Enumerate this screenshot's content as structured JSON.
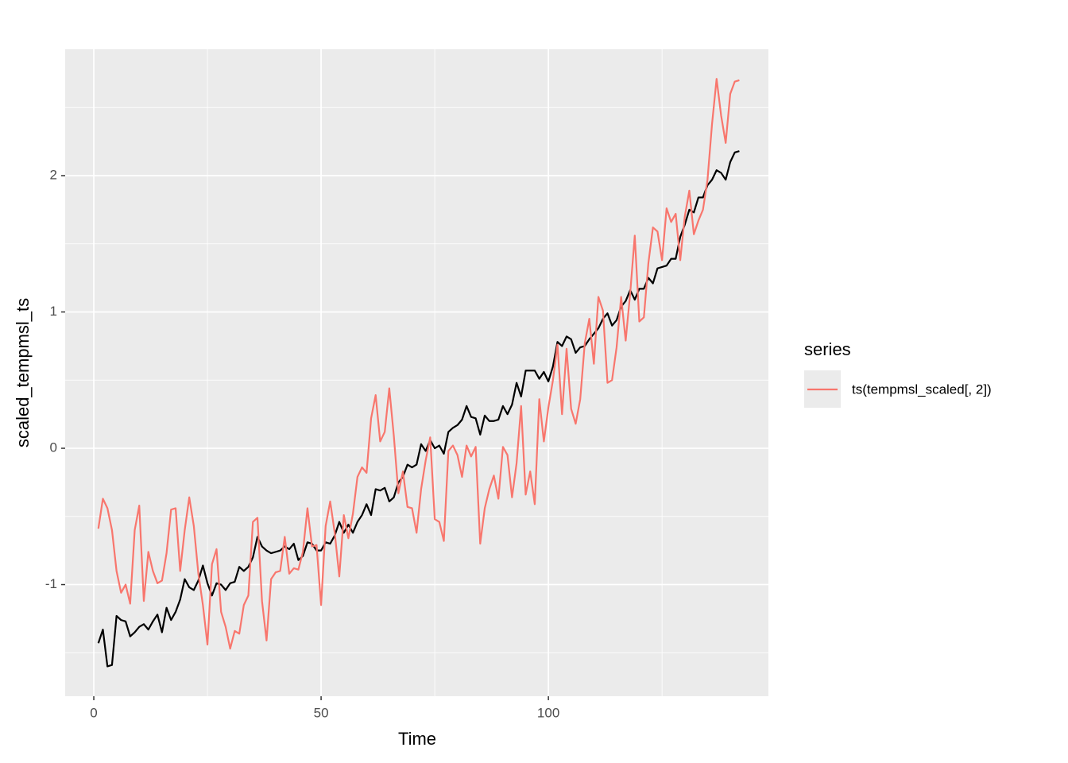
{
  "chart_data": {
    "type": "line",
    "x_label": "Time",
    "y_label": "scaled_tempmsl_ts",
    "legend_title": "series",
    "legend_position": "right",
    "x": [
      1,
      2,
      3,
      4,
      5,
      6,
      7,
      8,
      9,
      10,
      11,
      12,
      13,
      14,
      15,
      16,
      17,
      18,
      19,
      20,
      21,
      22,
      23,
      24,
      25,
      26,
      27,
      28,
      29,
      30,
      31,
      32,
      33,
      34,
      35,
      36,
      37,
      38,
      39,
      40,
      41,
      42,
      43,
      44,
      45,
      46,
      47,
      48,
      49,
      50,
      51,
      52,
      53,
      54,
      55,
      56,
      57,
      58,
      59,
      60,
      61,
      62,
      63,
      64,
      65,
      66,
      67,
      68,
      69,
      70,
      71,
      72,
      73,
      74,
      75,
      76,
      77,
      78,
      79,
      80,
      81,
      82,
      83,
      84,
      85,
      86,
      87,
      88,
      89,
      90,
      91,
      92,
      93,
      94,
      95,
      96,
      97,
      98,
      99,
      100,
      101,
      102,
      103,
      104,
      105,
      106,
      107,
      108,
      109,
      110,
      111,
      112,
      113,
      114,
      115,
      116,
      117,
      118,
      119,
      120,
      121,
      122,
      123,
      124,
      125,
      126,
      127,
      128,
      129,
      130,
      131,
      132,
      133,
      134,
      135,
      136,
      137,
      138,
      139,
      140,
      141,
      142
    ],
    "series": [
      {
        "color": "#000000",
        "values": [
          -1.43,
          -1.33,
          -1.6,
          -1.59,
          -1.23,
          -1.26,
          -1.27,
          -1.38,
          -1.35,
          -1.31,
          -1.29,
          -1.33,
          -1.27,
          -1.22,
          -1.35,
          -1.17,
          -1.26,
          -1.2,
          -1.11,
          -0.96,
          -1.02,
          -1.04,
          -0.97,
          -0.86,
          -0.99,
          -1.08,
          -0.99,
          -1.0,
          -1.04,
          -0.99,
          -0.98,
          -0.87,
          -0.9,
          -0.87,
          -0.8,
          -0.65,
          -0.72,
          -0.75,
          -0.77,
          -0.76,
          -0.75,
          -0.72,
          -0.74,
          -0.7,
          -0.82,
          -0.79,
          -0.69,
          -0.7,
          -0.75,
          -0.75,
          -0.69,
          -0.7,
          -0.64,
          -0.54,
          -0.62,
          -0.56,
          -0.62,
          -0.54,
          -0.49,
          -0.41,
          -0.49,
          -0.3,
          -0.31,
          -0.29,
          -0.39,
          -0.36,
          -0.25,
          -0.21,
          -0.12,
          -0.14,
          -0.12,
          0.03,
          -0.02,
          0.06,
          0.0,
          0.02,
          -0.04,
          0.12,
          0.15,
          0.17,
          0.21,
          0.31,
          0.23,
          0.22,
          0.1,
          0.24,
          0.2,
          0.2,
          0.21,
          0.31,
          0.25,
          0.32,
          0.48,
          0.38,
          0.57,
          0.57,
          0.57,
          0.51,
          0.56,
          0.49,
          0.6,
          0.78,
          0.75,
          0.82,
          0.8,
          0.7,
          0.74,
          0.75,
          0.8,
          0.84,
          0.88,
          0.95,
          0.99,
          0.9,
          0.94,
          1.04,
          1.08,
          1.16,
          1.09,
          1.17,
          1.17,
          1.25,
          1.21,
          1.32,
          1.33,
          1.34,
          1.39,
          1.39,
          1.55,
          1.64,
          1.75,
          1.73,
          1.84,
          1.84,
          1.93,
          1.97,
          2.04,
          2.02,
          1.97,
          2.1,
          2.17,
          2.18
        ]
      },
      {
        "name": "ts(tempmsl_scaled[, 2])",
        "color": "#F8766D",
        "values": [
          -0.59,
          -0.37,
          -0.44,
          -0.6,
          -0.9,
          -1.06,
          -1.0,
          -1.14,
          -0.6,
          -0.42,
          -1.12,
          -0.76,
          -0.9,
          -0.99,
          -0.97,
          -0.77,
          -0.45,
          -0.44,
          -0.9,
          -0.6,
          -0.36,
          -0.57,
          -0.92,
          -1.15,
          -1.44,
          -0.85,
          -0.74,
          -1.2,
          -1.31,
          -1.47,
          -1.34,
          -1.36,
          -1.15,
          -1.08,
          -0.54,
          -0.51,
          -1.12,
          -1.41,
          -0.96,
          -0.91,
          -0.9,
          -0.65,
          -0.92,
          -0.88,
          -0.89,
          -0.76,
          -0.44,
          -0.72,
          -0.71,
          -1.15,
          -0.57,
          -0.39,
          -0.62,
          -0.94,
          -0.49,
          -0.66,
          -0.48,
          -0.21,
          -0.14,
          -0.18,
          0.22,
          0.39,
          0.05,
          0.12,
          0.44,
          0.09,
          -0.33,
          -0.17,
          -0.43,
          -0.44,
          -0.62,
          -0.3,
          -0.09,
          0.08,
          -0.52,
          -0.54,
          -0.68,
          -0.02,
          0.02,
          -0.05,
          -0.21,
          0.02,
          -0.06,
          0.01,
          -0.7,
          -0.44,
          -0.3,
          -0.2,
          -0.37,
          0.01,
          -0.05,
          -0.36,
          -0.11,
          0.31,
          -0.34,
          -0.17,
          -0.41,
          0.36,
          0.05,
          0.3,
          0.5,
          0.76,
          0.25,
          0.73,
          0.29,
          0.18,
          0.36,
          0.77,
          0.95,
          0.62,
          1.11,
          1.01,
          0.48,
          0.5,
          0.74,
          1.11,
          0.79,
          1.14,
          1.56,
          0.93,
          0.96,
          1.36,
          1.62,
          1.59,
          1.38,
          1.76,
          1.66,
          1.72,
          1.38,
          1.7,
          1.89,
          1.57,
          1.67,
          1.75,
          1.97,
          2.38,
          2.71,
          2.44,
          2.24,
          2.6,
          2.69,
          2.7
        ]
      }
    ],
    "xlim": [
      -6.3,
      148.4
    ],
    "xticks": [
      0,
      50,
      100
    ],
    "x_minor_grid": [
      25,
      75,
      125
    ],
    "ylim": [
      -1.819,
      2.927
    ],
    "yticks": [
      -1,
      0,
      1,
      2
    ],
    "y_minor_grid": [
      -1.5,
      -0.5,
      0.5,
      1.5,
      2.5
    ],
    "grid": true
  }
}
